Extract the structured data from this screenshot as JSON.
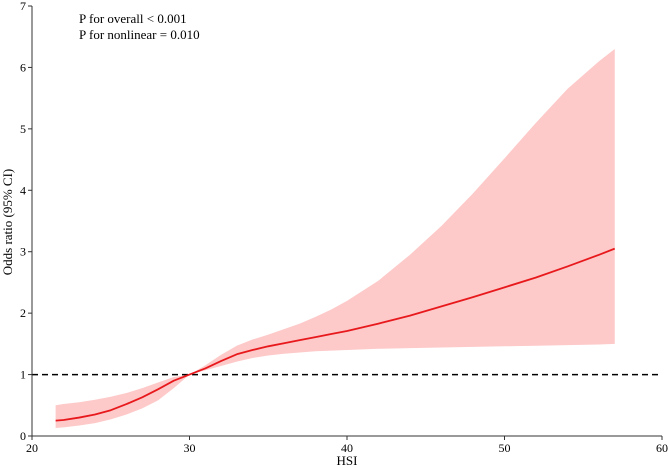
{
  "chart_data": {
    "type": "line",
    "xlabel": "HSI",
    "ylabel": "Odds ratio (95% CI)",
    "xlim": [
      20,
      60
    ],
    "ylim": [
      0,
      7
    ],
    "xticks": [
      "20",
      "30",
      "40",
      "50",
      "60"
    ],
    "yticks": [
      "0",
      "1",
      "2",
      "3",
      "4",
      "5",
      "6",
      "7"
    ],
    "reference_line": {
      "y": 1,
      "style": "dashed",
      "color": "#000000"
    },
    "annotations": [
      "P for overall < 0.001",
      "P for nonlinear = 0.010"
    ],
    "series": [
      {
        "type": "line",
        "color": "#e8191c",
        "x": [
          21.5,
          22,
          23,
          24,
          25,
          26,
          27,
          28,
          29,
          30,
          31,
          32,
          33,
          34,
          35,
          36,
          37,
          38,
          39,
          40,
          42,
          44,
          46,
          48,
          50,
          52,
          54,
          56,
          57
        ],
        "y": [
          0.25,
          0.26,
          0.3,
          0.35,
          0.42,
          0.52,
          0.63,
          0.76,
          0.9,
          1.0,
          1.1,
          1.22,
          1.33,
          1.4,
          1.46,
          1.51,
          1.56,
          1.61,
          1.66,
          1.71,
          1.83,
          1.96,
          2.11,
          2.26,
          2.42,
          2.58,
          2.76,
          2.95,
          3.05
        ]
      },
      {
        "type": "band",
        "color": "#fdc9c9",
        "x": [
          21.5,
          22,
          23,
          24,
          25,
          26,
          27,
          28,
          29,
          30,
          31,
          32,
          33,
          34,
          35,
          36,
          37,
          38,
          39,
          40,
          42,
          44,
          46,
          48,
          50,
          52,
          54,
          56,
          57
        ],
        "lower": [
          0.13,
          0.14,
          0.17,
          0.21,
          0.27,
          0.35,
          0.45,
          0.58,
          0.78,
          1.0,
          1.07,
          1.14,
          1.21,
          1.27,
          1.31,
          1.34,
          1.36,
          1.38,
          1.39,
          1.4,
          1.42,
          1.43,
          1.44,
          1.45,
          1.46,
          1.47,
          1.48,
          1.49,
          1.5
        ],
        "upper": [
          0.5,
          0.52,
          0.55,
          0.59,
          0.64,
          0.7,
          0.78,
          0.87,
          0.96,
          1.0,
          1.15,
          1.32,
          1.47,
          1.57,
          1.65,
          1.74,
          1.83,
          1.94,
          2.06,
          2.2,
          2.53,
          2.95,
          3.42,
          3.95,
          4.52,
          5.1,
          5.65,
          6.1,
          6.3
        ]
      }
    ]
  }
}
